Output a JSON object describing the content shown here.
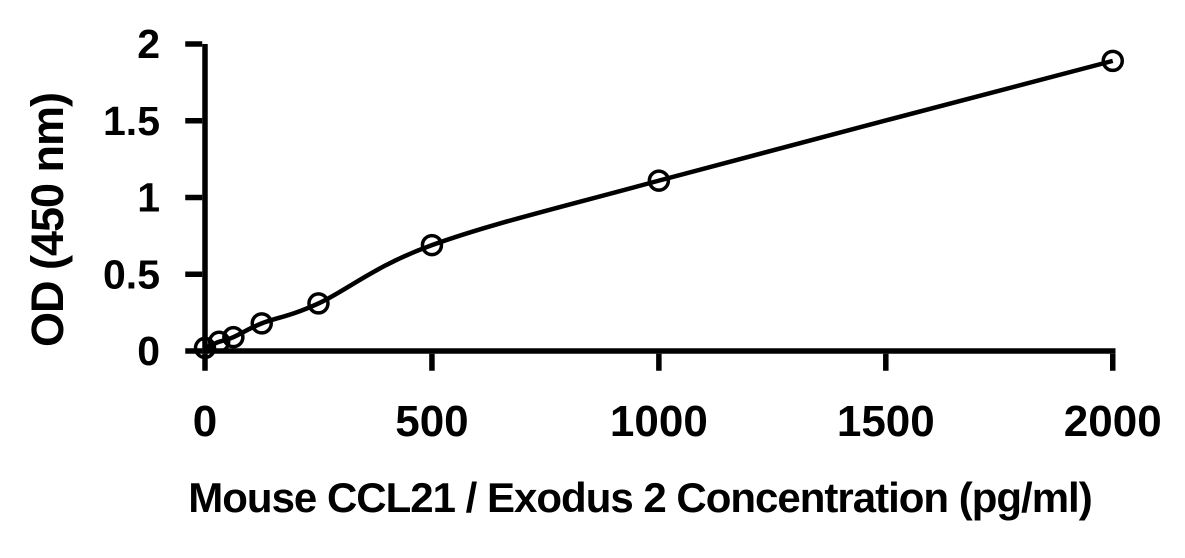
{
  "figure": {
    "background": "#ffffff",
    "foreground": "#000000"
  },
  "chart_data": {
    "type": "scatter",
    "subtype": "standard-curve-line-through-points",
    "title": "",
    "xlabel": "Mouse CCL21 / Exodus 2 Concentration (pg/ml)",
    "ylabel": "OD (450 nm)",
    "x": [
      0,
      31.25,
      62.5,
      125,
      250,
      500,
      1000,
      2000
    ],
    "y": [
      0.02,
      0.06,
      0.09,
      0.18,
      0.31,
      0.69,
      1.11,
      1.89
    ],
    "xlim": [
      0,
      2000
    ],
    "ylim": [
      0,
      2
    ],
    "xticks": [
      0,
      500,
      1000,
      1500,
      2000
    ],
    "xtick_labels": [
      "0",
      "500",
      "1000",
      "1500",
      "2000"
    ],
    "yticks": [
      0,
      0.5,
      1,
      1.5,
      2
    ],
    "ytick_labels": [
      "0",
      "0.5",
      "1",
      "1.5",
      "2"
    ],
    "grid": false,
    "legend": null,
    "marker": "open-circle",
    "marker_color": "#000000",
    "line_color": "#000000",
    "axis_color": "#000000"
  }
}
